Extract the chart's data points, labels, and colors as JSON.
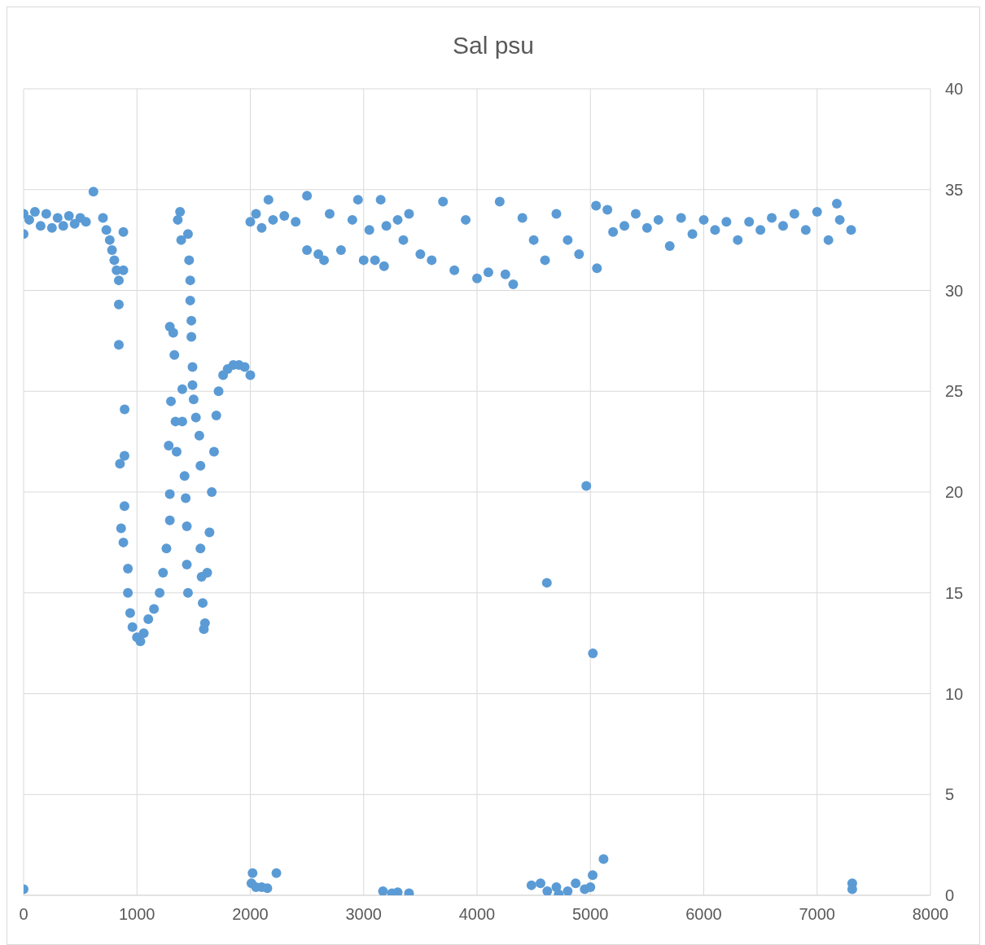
{
  "chart_data": {
    "type": "scatter",
    "title": "Sal psu",
    "xlim": [
      0,
      8000
    ],
    "xticks": [
      0,
      1000,
      2000,
      3000,
      4000,
      5000,
      6000,
      7000,
      8000
    ],
    "ylim": [
      0,
      40
    ],
    "yticks": [
      0,
      5,
      10,
      15,
      20,
      25,
      30,
      35,
      40
    ],
    "grid": true,
    "marker": "circle",
    "series": [
      {
        "color": "#5b9bd5",
        "x": [
          0,
          0,
          0,
          50,
          100,
          150,
          200,
          250,
          300,
          350,
          400,
          450,
          500,
          550,
          616,
          700,
          730,
          760,
          780,
          800,
          820,
          840,
          840,
          840,
          880,
          880,
          891,
          890,
          850,
          890,
          860,
          880,
          920,
          920,
          940,
          960,
          1000,
          1030,
          1060,
          1100,
          1150,
          1200,
          1230,
          1260,
          1290,
          1290,
          1280,
          1300,
          1290,
          1320,
          1330,
          1340,
          1350,
          1360,
          1380,
          1390,
          1400,
          1400,
          1420,
          1430,
          1440,
          1440,
          1450,
          1450,
          1460,
          1470,
          1470,
          1480,
          1480,
          1490,
          1490,
          1500,
          1520,
          1550,
          1560,
          1560,
          1570,
          1580,
          1590,
          1600,
          1620,
          1640,
          1660,
          1680,
          1700,
          1720,
          1760,
          1800,
          1850,
          1900,
          1950,
          2000,
          2010,
          2020,
          2050,
          2100,
          2150,
          2230,
          2000,
          2050,
          2100,
          2160,
          2200,
          2300,
          2400,
          2500,
          2500,
          2600,
          2650,
          2700,
          2800,
          2900,
          2950,
          3000,
          3050,
          3100,
          3150,
          3180,
          3200,
          3170,
          3250,
          3300,
          3400,
          3300,
          3350,
          3400,
          3500,
          3600,
          3700,
          3800,
          3900,
          4000,
          4100,
          4200,
          4250,
          4319,
          4400,
          4500,
          4600,
          4700,
          4800,
          4900,
          5058,
          5050,
          5150,
          5200,
          5300,
          5400,
          5500,
          5600,
          5700,
          5800,
          5900,
          6000,
          6100,
          6200,
          6300,
          6400,
          6500,
          6600,
          6700,
          6800,
          6900,
          7000,
          7100,
          7174,
          7200,
          7300,
          4964,
          4616,
          5022,
          4480,
          4560,
          4620,
          4700,
          4720,
          4800,
          4870,
          4950,
          5000,
          5020,
          5116,
          7310,
          7310
        ],
        "values": [
          0.3,
          32.8,
          33.8,
          33.5,
          33.9,
          33.2,
          33.8,
          33.1,
          33.6,
          33.2,
          33.7,
          33.3,
          33.6,
          33.4,
          34.9,
          33.6,
          33.0,
          32.5,
          32.0,
          31.5,
          31.0,
          30.5,
          29.3,
          27.3,
          32.9,
          31.0,
          24.1,
          21.8,
          21.4,
          19.3,
          18.2,
          17.5,
          16.2,
          15.0,
          14.0,
          13.3,
          12.8,
          12.6,
          13.0,
          13.7,
          14.2,
          15.0,
          16.0,
          17.2,
          18.6,
          19.9,
          22.3,
          24.5,
          28.2,
          27.9,
          26.8,
          23.5,
          22.0,
          33.5,
          33.9,
          32.5,
          25.1,
          23.5,
          20.8,
          19.7,
          18.3,
          16.4,
          15.0,
          32.8,
          31.5,
          30.5,
          29.5,
          28.5,
          27.7,
          26.2,
          25.3,
          24.6,
          23.7,
          22.8,
          21.3,
          17.2,
          15.8,
          14.5,
          13.2,
          13.5,
          16.0,
          18.0,
          20.0,
          22.0,
          23.8,
          25.0,
          25.8,
          26.1,
          26.3,
          26.3,
          26.2,
          25.8,
          0.6,
          1.1,
          0.4,
          0.4,
          0.35,
          1.1,
          33.4,
          33.8,
          33.1,
          34.5,
          33.5,
          33.7,
          33.4,
          34.7,
          32.0,
          31.8,
          31.5,
          33.8,
          32.0,
          33.5,
          34.5,
          31.5,
          33.0,
          31.5,
          34.5,
          31.2,
          33.2,
          0.2,
          0.1,
          0.15,
          0.1,
          33.5,
          32.5,
          33.8,
          31.8,
          31.5,
          34.4,
          31.0,
          33.5,
          30.6,
          30.9,
          34.4,
          30.8,
          30.3,
          33.6,
          32.5,
          31.5,
          33.8,
          32.5,
          31.8,
          31.1,
          34.2,
          34.0,
          32.9,
          33.2,
          33.8,
          33.1,
          33.5,
          32.2,
          33.6,
          32.8,
          33.5,
          33.0,
          33.4,
          32.5,
          33.4,
          33.0,
          33.6,
          33.2,
          33.8,
          33.0,
          33.9,
          32.5,
          34.3,
          33.5,
          33.0,
          20.3,
          15.5,
          12.0,
          0.5,
          0.6,
          0.2,
          0.4,
          0.05,
          0.2,
          0.6,
          0.3,
          0.4,
          1.0,
          1.8,
          0.6,
          0.3
        ]
      }
    ]
  }
}
